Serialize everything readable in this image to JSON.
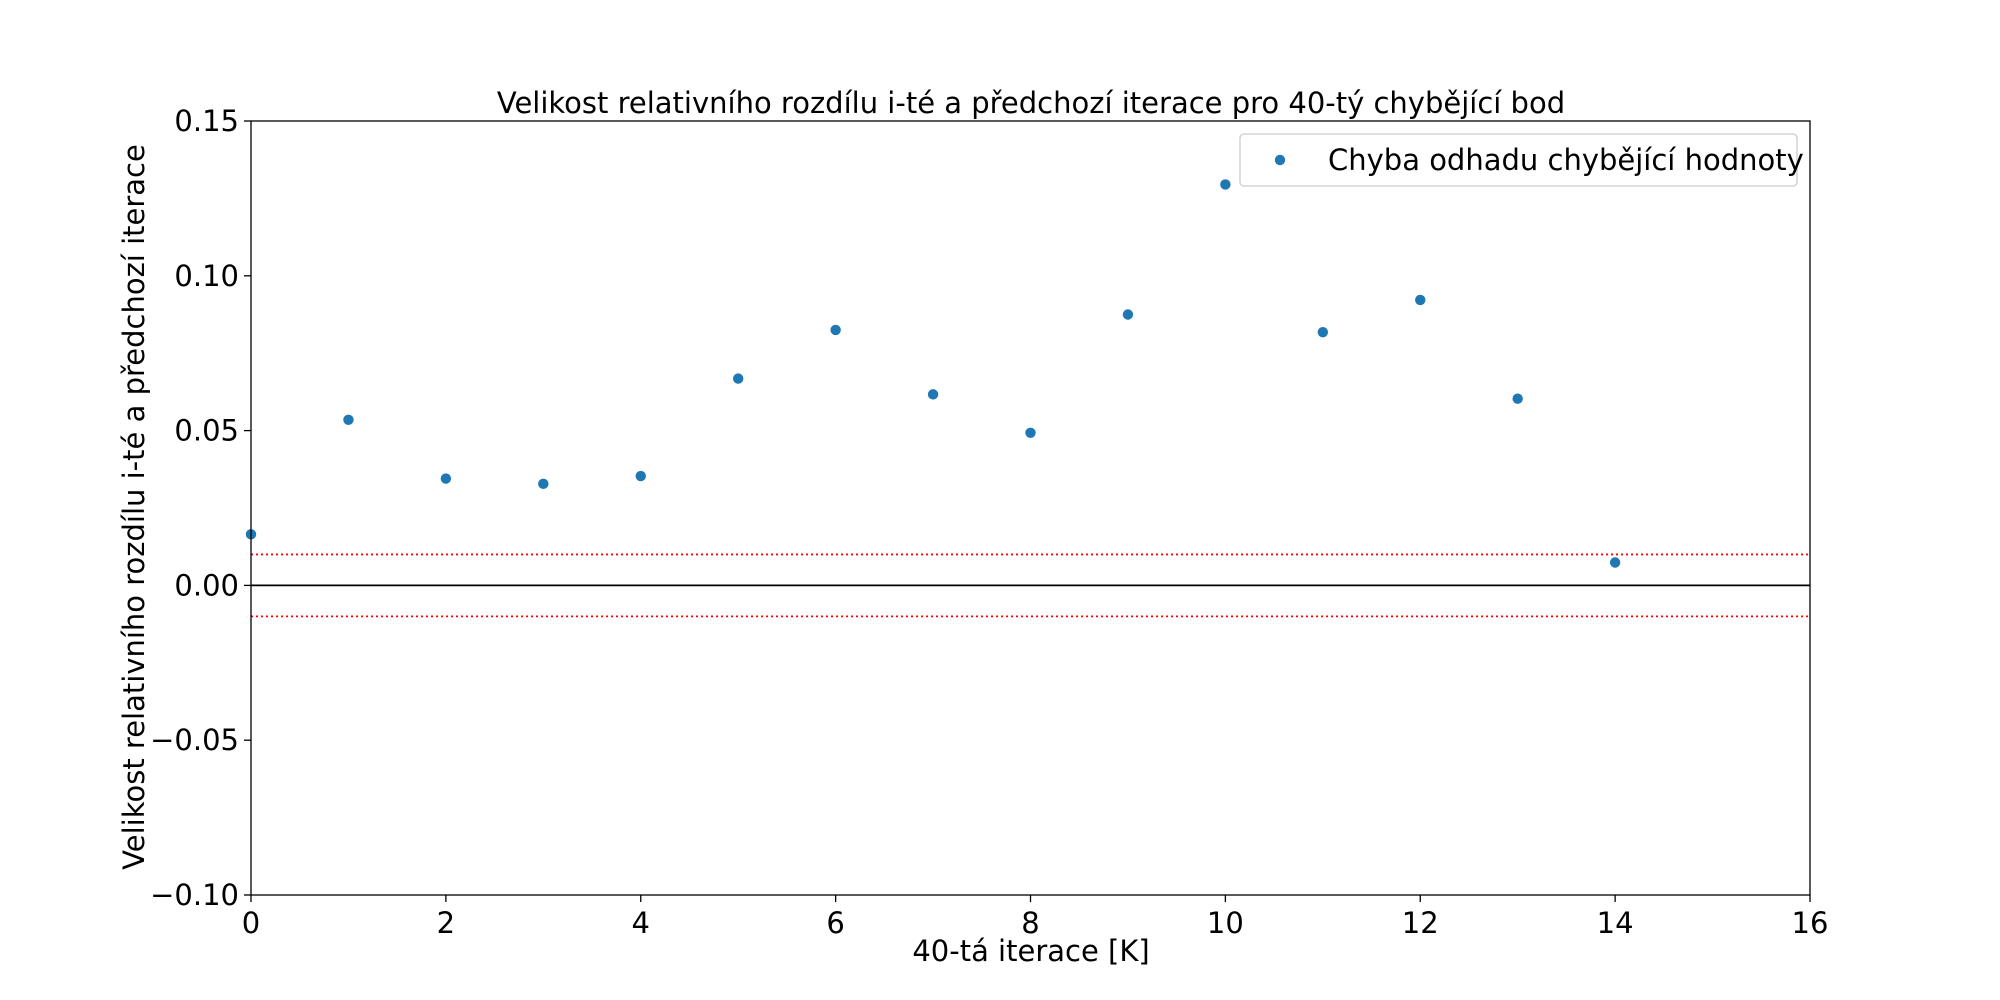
{
  "chart_data": {
    "type": "scatter",
    "title": "Velikost relativního rozdílu i-té a předchozí iterace pro 40-tý chybějící bod",
    "xlabel": "40-tá iterace [K]",
    "ylabel": "Velikost relativního rozdílu i-té a předchozí iterace",
    "xlim": [
      0,
      16
    ],
    "ylim": [
      -0.1,
      0.15
    ],
    "xticks": [
      0,
      2,
      4,
      6,
      8,
      10,
      12,
      14,
      16
    ],
    "xtick_labels": [
      "0",
      "2",
      "4",
      "6",
      "8",
      "10",
      "12",
      "14",
      "16"
    ],
    "yticks": [
      -0.1,
      -0.05,
      0.0,
      0.05,
      0.1,
      0.15
    ],
    "ytick_labels": [
      "−0.10",
      "−0.05",
      "0.00",
      "0.05",
      "0.10",
      "0.15"
    ],
    "grid": false,
    "legend_position": "top-right",
    "series": [
      {
        "name": "Chyba odhadu chybějící hodnoty",
        "color": "#1f77b4",
        "marker": "circle",
        "x": [
          0,
          1,
          2,
          3,
          4,
          5,
          6,
          7,
          8,
          9,
          10,
          11,
          12,
          13,
          14
        ],
        "y": [
          0.0165,
          0.0535,
          0.0345,
          0.0328,
          0.0353,
          0.0668,
          0.0825,
          0.0617,
          0.0493,
          0.0875,
          0.1295,
          0.0818,
          0.0922,
          0.0603,
          0.0074
        ]
      }
    ],
    "reference_lines": [
      {
        "y": 0.0,
        "color": "#000000",
        "style": "solid"
      },
      {
        "y": 0.01,
        "color": "#ff0000",
        "style": "dotted"
      },
      {
        "y": -0.01,
        "color": "#ff0000",
        "style": "dotted"
      }
    ]
  }
}
